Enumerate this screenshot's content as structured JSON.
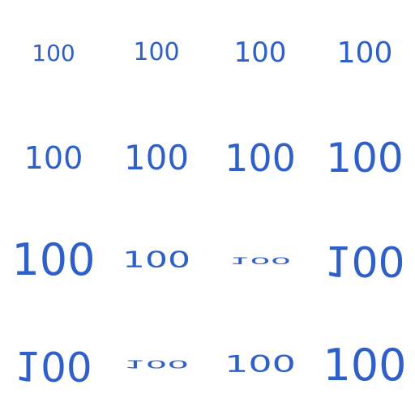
{
  "text_color": "#2f5fc8",
  "tiles": [
    {
      "label": "100"
    },
    {
      "label": "100"
    },
    {
      "label": "100"
    },
    {
      "label": "100"
    },
    {
      "label": "100"
    },
    {
      "label": "100"
    },
    {
      "label": "100"
    },
    {
      "label": "100"
    },
    {
      "label": "100"
    },
    {
      "label": "100"
    },
    {
      "label": "100"
    },
    {
      "label": "100"
    },
    {
      "label": "100"
    },
    {
      "label": "100"
    },
    {
      "label": "100"
    },
    {
      "label": "100"
    }
  ]
}
